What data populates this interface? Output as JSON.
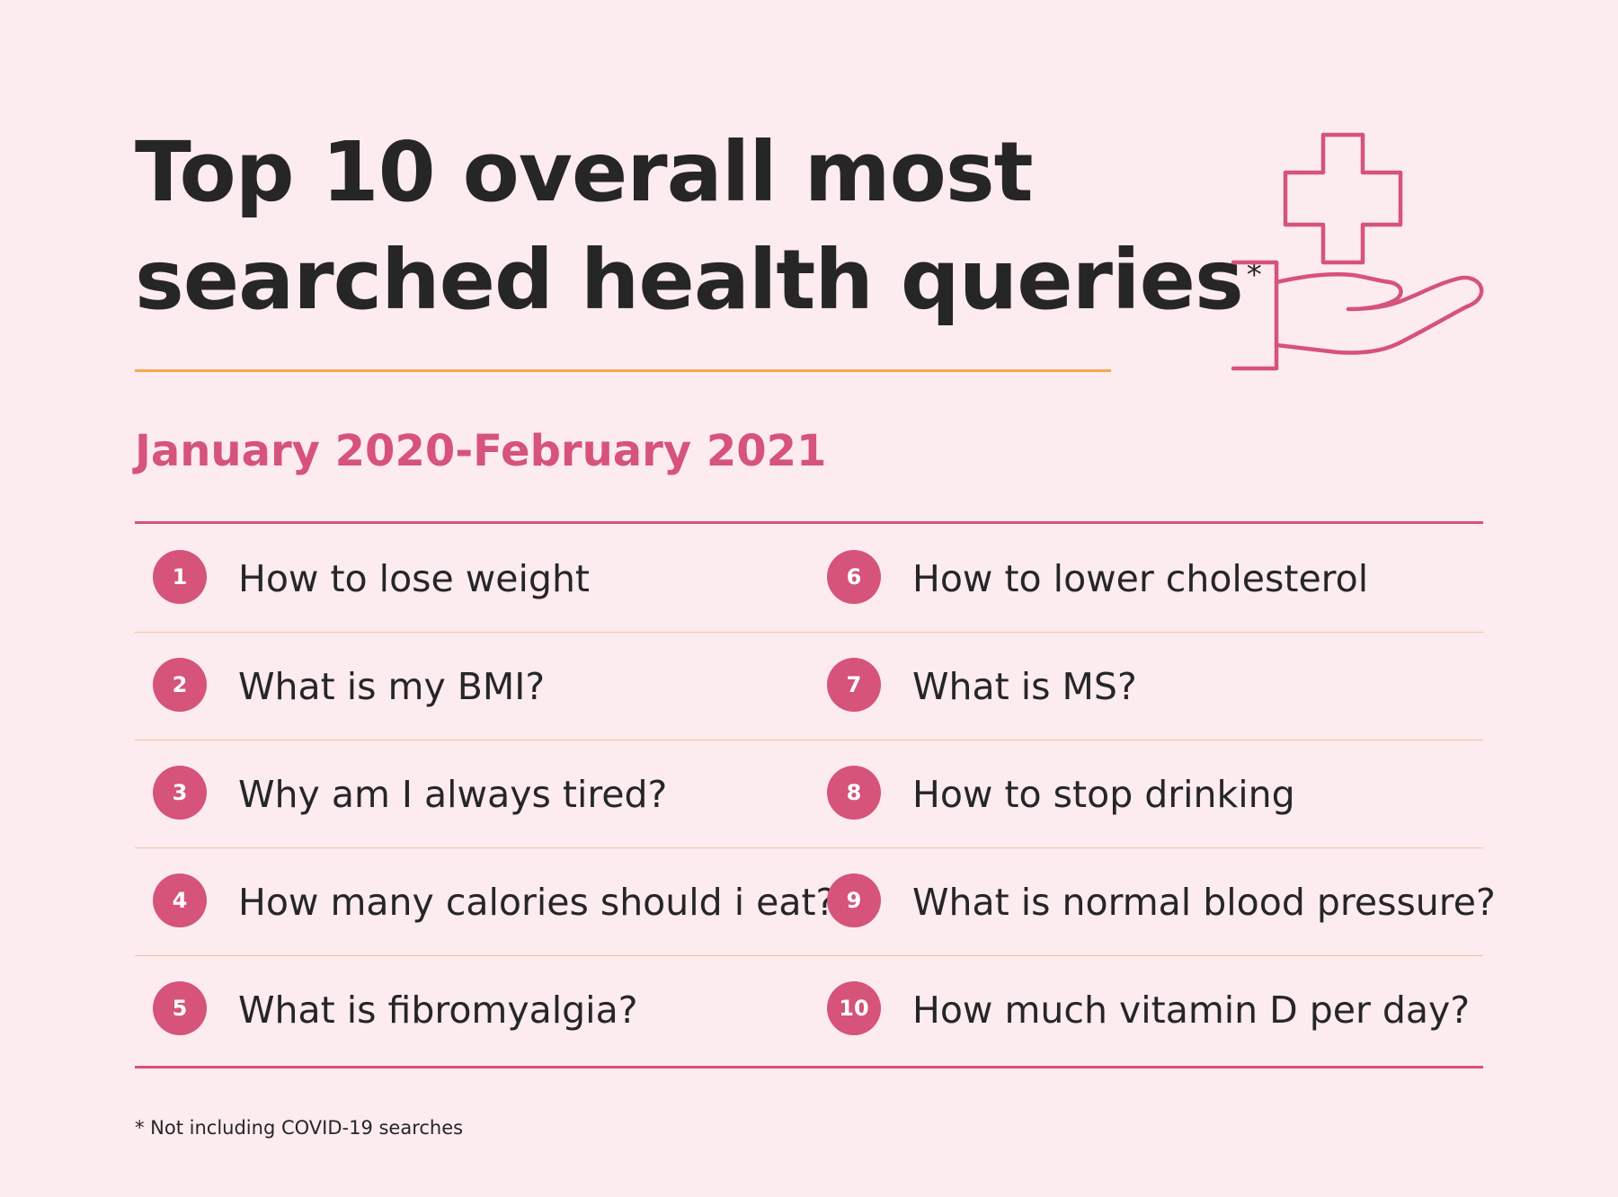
{
  "header": {
    "title_line1": "Top 10 overall most",
    "title_line2": "searched health queries",
    "title_marker": "*",
    "subtitle": "January 2020-February 2021"
  },
  "colors": {
    "background": "#fcebef",
    "accent": "#d6537a",
    "rule": "#f4a94a",
    "text": "#262626"
  },
  "logo": {
    "icon": "hand-with-medical-cross-icon"
  },
  "queries": [
    {
      "rank": "1",
      "text": "How to lose weight"
    },
    {
      "rank": "2",
      "text": "What is my BMI?"
    },
    {
      "rank": "3",
      "text": "Why am I always tired?"
    },
    {
      "rank": "4",
      "text": "How many calories should i eat?"
    },
    {
      "rank": "5",
      "text": "What is fibromyalgia?"
    },
    {
      "rank": "6",
      "text": "How to lower cholesterol"
    },
    {
      "rank": "7",
      "text": "What is MS?"
    },
    {
      "rank": "8",
      "text": "How to stop drinking"
    },
    {
      "rank": "9",
      "text": "What is normal blood pressure?"
    },
    {
      "rank": "10",
      "text": "How much vitamin D per day?"
    }
  ],
  "footnote": "* Not including COVID-19 searches"
}
